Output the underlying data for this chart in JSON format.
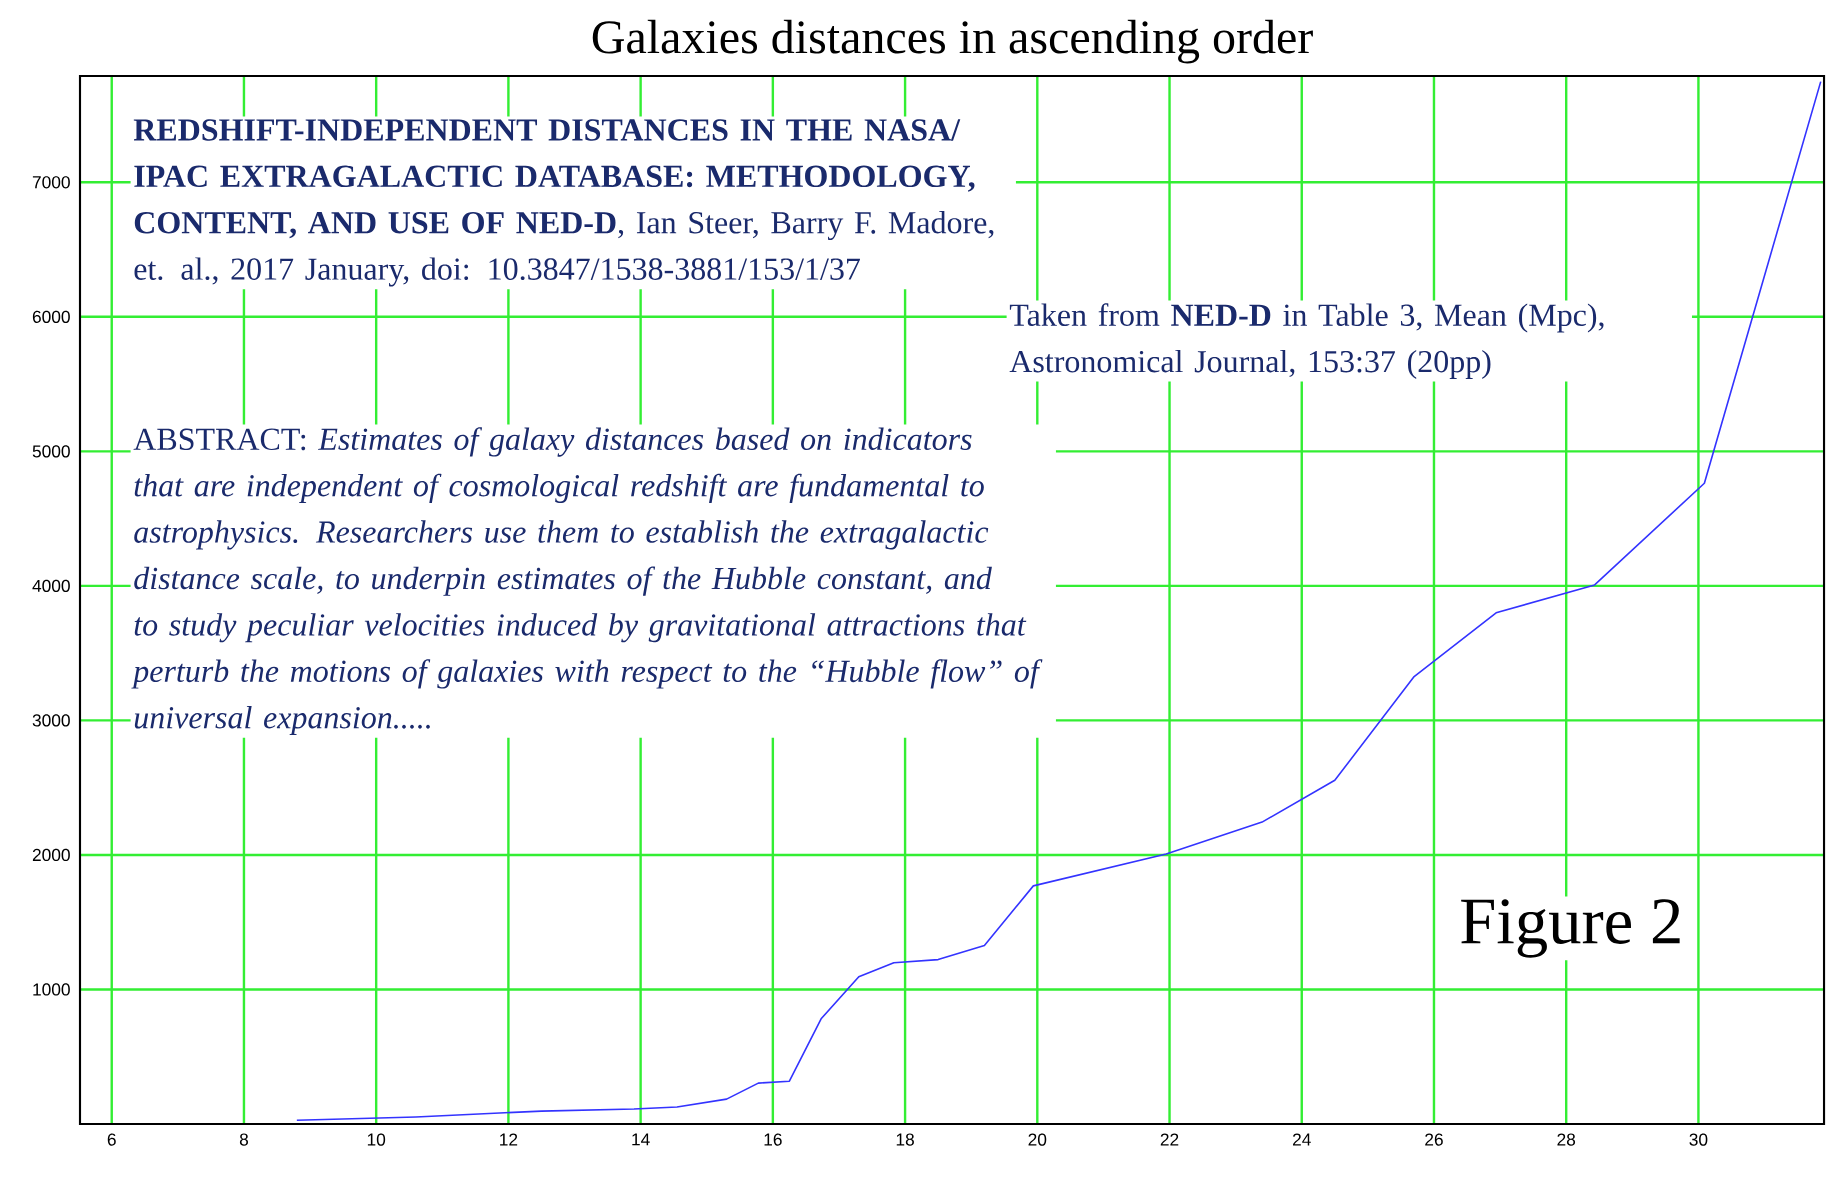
{
  "chart_data": {
    "type": "line",
    "title": "Galaxies distances in ascending order",
    "x": [
      8.8,
      10.6,
      12.5,
      13.9,
      14.55,
      15.3,
      15.78,
      16.25,
      16.73,
      17.3,
      17.83,
      18.5,
      19.2,
      19.94,
      21.95,
      23.4,
      24.5,
      25.7,
      26.94,
      28.43,
      30.09,
      31.85
    ],
    "values": [
      28,
      52,
      96,
      111,
      126,
      185,
      304,
      318,
      782,
      1095,
      1199,
      1222,
      1326,
      1770,
      2007,
      2244,
      2555,
      3326,
      3800,
      4007,
      4763,
      7748
    ],
    "color": "#3333ff",
    "xlim": [
      5.52,
      31.9
    ],
    "ylim": [
      0,
      7790
    ],
    "xticks": [
      6,
      8,
      10,
      12,
      14,
      16,
      18,
      20,
      22,
      24,
      26,
      28,
      30
    ],
    "yticks": [
      1000,
      2000,
      3000,
      4000,
      5000,
      6000,
      7000
    ],
    "grid": true,
    "annotations": [
      "**REDSHIFT-INDEPENDENT DISTANCES IN THE NASA/ IPAC EXTRAGALACTIC DATABASE: METHODOLOGY, CONTENT, AND USE OF NED-D**, Ian Steer, Barry F. Madore, et. al., 2017 January, doi: 10.3847/1538-3881/153/1/37",
      "Taken from **NED-D** in Table 3, Mean (Mpc), Astronomical Journal, 153:37 (20pp)",
      "ABSTRACT: *Estimates of galaxy distances based on indicators that are independent of cosmological redshift are fundamental to astrophysics. Researchers use them to establish the extragalactic distance scale, to underpin estimates of the Hubble constant, and to study peculiar velocities induced by gravitational attractions that perturb the motions of galaxies with respect to the “Hubble flow” of universal expansion.....*",
      "Figure 2"
    ]
  }
}
